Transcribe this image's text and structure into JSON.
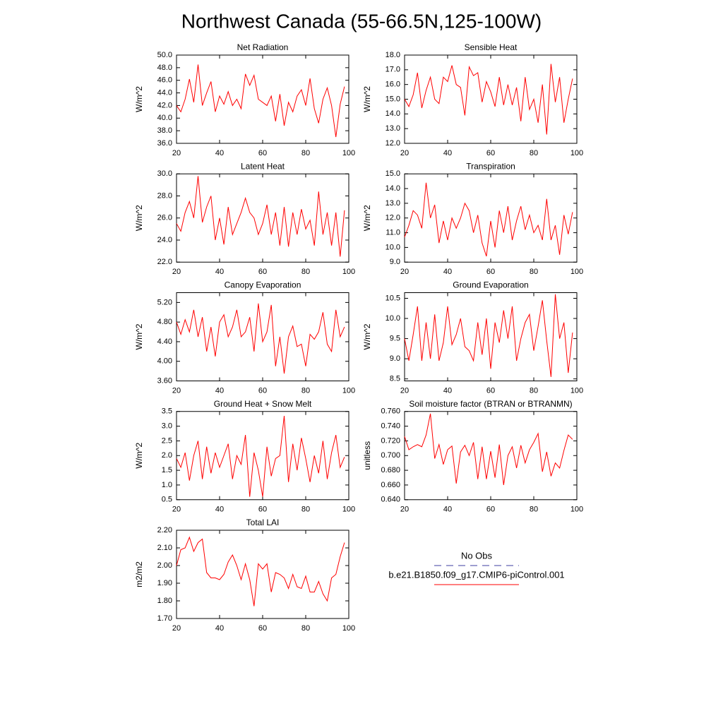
{
  "title": "Northwest Canada (55-66.5N,125-100W)",
  "legend": [
    {
      "name": "No Obs",
      "color": "#3c3ca0",
      "style": "dashed"
    },
    {
      "name": "b.e21.B1850.f09_g17.CMIP6-piControl.001",
      "color": "#ff0000",
      "style": "solid"
    }
  ],
  "chart_data": [
    {
      "type": "line",
      "title": "Net Radiation",
      "y_label": "W/m^2",
      "color": "#ff0000",
      "x": [
        20,
        22,
        24,
        26,
        28,
        30,
        32,
        34,
        36,
        38,
        40,
        42,
        44,
        46,
        48,
        50,
        52,
        54,
        56,
        58,
        60,
        62,
        64,
        66,
        68,
        70,
        72,
        74,
        76,
        78,
        80,
        82,
        84,
        86,
        88,
        90,
        92,
        94,
        96,
        98
      ],
      "values": [
        42.0,
        41.0,
        43.0,
        46.2,
        42.5,
        48.5,
        42.0,
        44.0,
        45.8,
        41.0,
        43.5,
        42.2,
        44.2,
        42.0,
        43.0,
        41.5,
        47.0,
        45.2,
        46.8,
        43.0,
        42.5,
        42.0,
        43.5,
        39.5,
        43.8,
        38.8,
        42.5,
        41.0,
        43.5,
        44.5,
        42.0,
        46.3,
        41.5,
        39.2,
        43.0,
        44.8,
        42.0,
        37.0,
        42.2,
        45.0
      ],
      "xlim": [
        20,
        100
      ],
      "xticks": [
        20,
        40,
        60,
        80,
        100
      ],
      "ylim": [
        36,
        50
      ],
      "yticks": [
        {
          "value": 36,
          "label": "36.0"
        },
        {
          "value": 38,
          "label": "38.0"
        },
        {
          "value": 40,
          "label": "40.0"
        },
        {
          "value": 42,
          "label": "42.0"
        },
        {
          "value": 44,
          "label": "44.0"
        },
        {
          "value": 46,
          "label": "46.0"
        },
        {
          "value": 48,
          "label": "48.0"
        },
        {
          "value": 50,
          "label": "50.0"
        }
      ]
    },
    {
      "type": "line",
      "title": "Sensible Heat",
      "y_label": "W/m^2",
      "color": "#ff0000",
      "x": [
        20,
        22,
        24,
        26,
        28,
        30,
        32,
        34,
        36,
        38,
        40,
        42,
        44,
        46,
        48,
        50,
        52,
        54,
        56,
        58,
        60,
        62,
        64,
        66,
        68,
        70,
        72,
        74,
        76,
        78,
        80,
        82,
        84,
        86,
        88,
        90,
        92,
        94,
        96,
        98
      ],
      "values": [
        15.0,
        14.5,
        15.3,
        16.8,
        14.4,
        15.6,
        16.5,
        15.0,
        14.7,
        16.5,
        16.2,
        17.3,
        16.0,
        15.8,
        13.9,
        17.2,
        16.6,
        16.8,
        14.8,
        16.2,
        15.5,
        14.5,
        16.5,
        14.6,
        16.0,
        14.6,
        15.8,
        13.5,
        16.5,
        14.3,
        15.0,
        13.4,
        16.0,
        12.6,
        17.4,
        14.8,
        16.5,
        13.4,
        15.0,
        16.4
      ],
      "xlim": [
        20,
        100
      ],
      "xticks": [
        20,
        40,
        60,
        80,
        100
      ],
      "ylim": [
        12,
        18
      ],
      "yticks": [
        {
          "value": 12,
          "label": "12.0"
        },
        {
          "value": 13,
          "label": "13.0"
        },
        {
          "value": 14,
          "label": "14.0"
        },
        {
          "value": 15,
          "label": "15.0"
        },
        {
          "value": 16,
          "label": "16.0"
        },
        {
          "value": 17,
          "label": "17.0"
        },
        {
          "value": 18,
          "label": "18.0"
        }
      ]
    },
    {
      "type": "line",
      "title": "Latent Heat",
      "y_label": "W/m^2",
      "color": "#ff0000",
      "x": [
        20,
        22,
        24,
        26,
        28,
        30,
        32,
        34,
        36,
        38,
        40,
        42,
        44,
        46,
        48,
        50,
        52,
        54,
        56,
        58,
        60,
        62,
        64,
        66,
        68,
        70,
        72,
        74,
        76,
        78,
        80,
        82,
        84,
        86,
        88,
        90,
        92,
        94,
        96,
        98
      ],
      "values": [
        25.5,
        24.8,
        26.5,
        27.5,
        26.0,
        29.8,
        25.6,
        27.0,
        28.0,
        24.0,
        26.0,
        23.6,
        27.0,
        24.5,
        25.5,
        26.5,
        27.8,
        26.5,
        26.0,
        24.5,
        25.5,
        27.2,
        24.5,
        26.5,
        23.5,
        27.0,
        23.4,
        26.5,
        24.5,
        26.8,
        25.0,
        25.8,
        23.5,
        28.4,
        24.5,
        26.5,
        23.5,
        26.5,
        22.5,
        26.7
      ],
      "xlim": [
        20,
        100
      ],
      "xticks": [
        20,
        40,
        60,
        80,
        100
      ],
      "ylim": [
        22,
        30
      ],
      "yticks": [
        {
          "value": 22,
          "label": "22.0"
        },
        {
          "value": 24,
          "label": "24.0"
        },
        {
          "value": 26,
          "label": "26.0"
        },
        {
          "value": 28,
          "label": "28.0"
        },
        {
          "value": 30,
          "label": "30.0"
        }
      ]
    },
    {
      "type": "line",
      "title": "Transpiration",
      "y_label": "W/m^2",
      "color": "#ff0000",
      "x": [
        20,
        22,
        24,
        26,
        28,
        30,
        32,
        34,
        36,
        38,
        40,
        42,
        44,
        46,
        48,
        50,
        52,
        54,
        56,
        58,
        60,
        62,
        64,
        66,
        68,
        70,
        72,
        74,
        76,
        78,
        80,
        82,
        84,
        86,
        88,
        90,
        92,
        94,
        96,
        98
      ],
      "values": [
        10.7,
        11.5,
        12.5,
        12.2,
        11.3,
        14.4,
        12.0,
        12.9,
        10.3,
        11.8,
        10.5,
        12.0,
        11.3,
        12.0,
        13.0,
        12.5,
        11.0,
        12.2,
        10.3,
        9.4,
        11.8,
        10.0,
        12.5,
        11.0,
        12.8,
        10.5,
        11.8,
        12.8,
        11.2,
        12.2,
        11.0,
        11.5,
        10.5,
        13.3,
        10.5,
        11.5,
        9.5,
        12.2,
        10.9,
        12.4
      ],
      "xlim": [
        20,
        100
      ],
      "xticks": [
        20,
        40,
        60,
        80,
        100
      ],
      "ylim": [
        9,
        15
      ],
      "yticks": [
        {
          "value": 9,
          "label": "9.0"
        },
        {
          "value": 10,
          "label": "10.0"
        },
        {
          "value": 11,
          "label": "11.0"
        },
        {
          "value": 12,
          "label": "12.0"
        },
        {
          "value": 13,
          "label": "13.0"
        },
        {
          "value": 14,
          "label": "14.0"
        },
        {
          "value": 15,
          "label": "15.0"
        }
      ]
    },
    {
      "type": "line",
      "title": "Canopy Evaporation",
      "y_label": "W/m^2",
      "color": "#ff0000",
      "x": [
        20,
        22,
        24,
        26,
        28,
        30,
        32,
        34,
        36,
        38,
        40,
        42,
        44,
        46,
        48,
        50,
        52,
        54,
        56,
        58,
        60,
        62,
        64,
        66,
        68,
        70,
        72,
        74,
        76,
        78,
        80,
        82,
        84,
        86,
        88,
        90,
        92,
        94,
        96,
        98
      ],
      "values": [
        4.8,
        4.55,
        4.85,
        4.6,
        5.05,
        4.5,
        4.9,
        4.2,
        4.7,
        4.1,
        4.8,
        4.95,
        4.5,
        4.7,
        5.05,
        4.5,
        4.6,
        4.9,
        4.2,
        5.18,
        4.4,
        4.6,
        5.15,
        3.9,
        4.5,
        3.75,
        4.5,
        4.72,
        4.3,
        4.35,
        3.9,
        4.55,
        4.45,
        4.6,
        5.0,
        4.35,
        4.2,
        5.05,
        4.5,
        4.7
      ],
      "xlim": [
        20,
        100
      ],
      "xticks": [
        20,
        40,
        60,
        80,
        100
      ],
      "ylim": [
        3.6,
        5.4
      ],
      "yticks": [
        {
          "value": 3.6,
          "label": "3.60"
        },
        {
          "value": 4.0,
          "label": "4.00"
        },
        {
          "value": 4.4,
          "label": "4.40"
        },
        {
          "value": 4.8,
          "label": "4.80"
        },
        {
          "value": 5.2,
          "label": "5.20"
        }
      ]
    },
    {
      "type": "line",
      "title": "Ground Evaporation",
      "y_label": "W/m^2",
      "color": "#ff0000",
      "x": [
        20,
        22,
        24,
        26,
        28,
        30,
        32,
        34,
        36,
        38,
        40,
        42,
        44,
        46,
        48,
        50,
        52,
        54,
        56,
        58,
        60,
        62,
        64,
        66,
        68,
        70,
        72,
        74,
        76,
        78,
        80,
        82,
        84,
        86,
        88,
        90,
        92,
        94,
        96,
        98
      ],
      "values": [
        9.5,
        8.95,
        9.6,
        10.3,
        8.95,
        9.9,
        9.0,
        10.1,
        8.95,
        9.4,
        10.3,
        9.35,
        9.6,
        10.0,
        9.3,
        9.2,
        8.95,
        9.9,
        9.1,
        10.0,
        8.75,
        9.9,
        9.4,
        10.2,
        9.5,
        10.3,
        8.95,
        9.5,
        9.9,
        10.1,
        9.2,
        9.8,
        10.45,
        9.45,
        8.55,
        10.6,
        9.5,
        9.9,
        8.65,
        9.65
      ],
      "xlim": [
        20,
        100
      ],
      "xticks": [
        20,
        40,
        60,
        80,
        100
      ],
      "ylim": [
        8.45,
        10.64
      ],
      "yticks": [
        8.5,
        {
          "value": 9,
          "label": "9.0"
        },
        9.5,
        {
          "value": 10,
          "label": "10.0"
        },
        10.5
      ]
    },
    {
      "type": "line",
      "title": "Ground Heat + Snow Melt",
      "y_label": "W/m^2",
      "color": "#ff0000",
      "x": [
        20,
        22,
        24,
        26,
        28,
        30,
        32,
        34,
        36,
        38,
        40,
        42,
        44,
        46,
        48,
        50,
        52,
        54,
        56,
        58,
        60,
        62,
        64,
        66,
        68,
        70,
        72,
        74,
        76,
        78,
        80,
        82,
        84,
        86,
        88,
        90,
        92,
        94,
        96,
        98
      ],
      "values": [
        1.9,
        1.6,
        2.1,
        1.15,
        2.0,
        2.5,
        1.2,
        2.3,
        1.4,
        2.1,
        1.6,
        2.0,
        2.4,
        1.2,
        2.0,
        1.7,
        2.7,
        0.6,
        2.1,
        1.5,
        0.6,
        2.3,
        1.3,
        1.9,
        2.0,
        3.35,
        1.1,
        2.4,
        1.5,
        2.6,
        1.9,
        1.1,
        2.0,
        1.4,
        2.5,
        1.2,
        2.1,
        2.7,
        1.6,
        1.95
      ],
      "xlim": [
        20,
        100
      ],
      "xticks": [
        20,
        40,
        60,
        80,
        100
      ],
      "ylim": [
        0.5,
        3.5
      ],
      "yticks": [
        0.5,
        {
          "value": 1,
          "label": "1.0"
        },
        1.5,
        {
          "value": 2,
          "label": "2.0"
        },
        2.5,
        {
          "value": 3,
          "label": "3.0"
        },
        3.5
      ]
    },
    {
      "type": "line",
      "title": "Soil moisture factor (BTRAN or BTRANMN)",
      "y_label": "unitless",
      "color": "#ff0000",
      "x": [
        20,
        22,
        24,
        26,
        28,
        30,
        32,
        34,
        36,
        38,
        40,
        42,
        44,
        46,
        48,
        50,
        52,
        54,
        56,
        58,
        60,
        62,
        64,
        66,
        68,
        70,
        72,
        74,
        76,
        78,
        80,
        82,
        84,
        86,
        88,
        90,
        92,
        94,
        96,
        98
      ],
      "values": [
        0.726,
        0.708,
        0.712,
        0.715,
        0.712,
        0.728,
        0.757,
        0.696,
        0.715,
        0.688,
        0.708,
        0.713,
        0.662,
        0.705,
        0.714,
        0.7,
        0.718,
        0.668,
        0.712,
        0.668,
        0.706,
        0.67,
        0.715,
        0.66,
        0.7,
        0.712,
        0.683,
        0.714,
        0.69,
        0.708,
        0.718,
        0.73,
        0.678,
        0.705,
        0.672,
        0.69,
        0.683,
        0.707,
        0.728,
        0.722
      ],
      "xlim": [
        20,
        100
      ],
      "xticks": [
        20,
        40,
        60,
        80,
        100
      ],
      "ylim": [
        0.64,
        0.76
      ],
      "yticks": [
        {
          "value": 0.64,
          "label": "0.640"
        },
        {
          "value": 0.66,
          "label": "0.660"
        },
        {
          "value": 0.68,
          "label": "0.680"
        },
        {
          "value": 0.7,
          "label": "0.700"
        },
        {
          "value": 0.72,
          "label": "0.720"
        },
        {
          "value": 0.74,
          "label": "0.740"
        },
        {
          "value": 0.76,
          "label": "0.760"
        }
      ]
    },
    {
      "type": "line",
      "title": "Total LAI",
      "y_label": "m2/m2",
      "color": "#ff0000",
      "x": [
        20,
        22,
        24,
        26,
        28,
        30,
        32,
        34,
        36,
        38,
        40,
        42,
        44,
        46,
        48,
        50,
        52,
        54,
        56,
        58,
        60,
        62,
        64,
        66,
        68,
        70,
        72,
        74,
        76,
        78,
        80,
        82,
        84,
        86,
        88,
        90,
        92,
        94,
        96,
        98
      ],
      "values": [
        2.0,
        2.09,
        2.1,
        2.16,
        2.08,
        2.13,
        2.15,
        1.96,
        1.93,
        1.93,
        1.92,
        1.95,
        2.02,
        2.06,
        2.0,
        1.92,
        2.01,
        1.92,
        1.77,
        2.01,
        1.98,
        2.01,
        1.85,
        1.96,
        1.95,
        1.93,
        1.87,
        1.95,
        1.88,
        1.87,
        1.94,
        1.85,
        1.85,
        1.91,
        1.84,
        1.8,
        1.93,
        1.95,
        2.05,
        2.13
      ],
      "xlim": [
        20,
        100
      ],
      "xticks": [
        20,
        40,
        60,
        80,
        100
      ],
      "ylim": [
        1.7,
        2.2
      ],
      "yticks": [
        {
          "value": 1.7,
          "label": "1.70"
        },
        {
          "value": 1.8,
          "label": "1.80"
        },
        {
          "value": 1.9,
          "label": "1.90"
        },
        {
          "value": 2.0,
          "label": "2.00"
        },
        {
          "value": 2.1,
          "label": "2.10"
        },
        {
          "value": 2.2,
          "label": "2.20"
        }
      ]
    }
  ]
}
